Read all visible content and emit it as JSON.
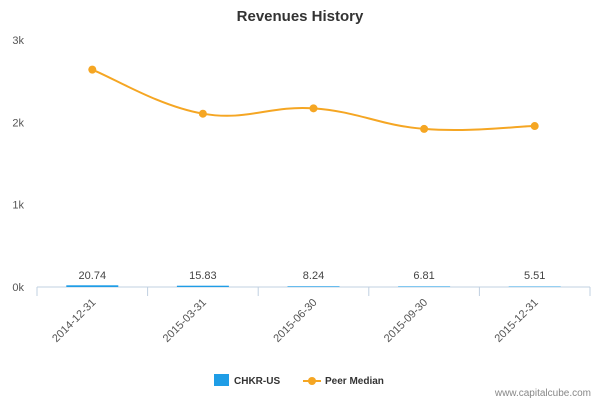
{
  "watermark": "www.capitalcube.com",
  "chart_data": {
    "type": "line",
    "title": "Revenues History",
    "xlabel": "",
    "ylabel": "",
    "categories": [
      "2014-12-31",
      "2015-03-31",
      "2015-06-30",
      "2015-09-30",
      "2015-12-31"
    ],
    "ylim": [
      0,
      3000
    ],
    "yticks": [
      {
        "value": 0,
        "label": "0k"
      },
      {
        "value": 1000,
        "label": "1k"
      },
      {
        "value": 2000,
        "label": "2k"
      },
      {
        "value": 3000,
        "label": "3k"
      }
    ],
    "grid": false,
    "legend_position": "bottom",
    "series": [
      {
        "name": "CHKR-US",
        "kind": "bar",
        "color": "#1f9de6",
        "values": [
          20.74,
          15.83,
          8.24,
          6.81,
          5.51
        ],
        "data_labels": [
          "20.74",
          "15.83",
          "8.24",
          "6.81",
          "5.51"
        ]
      },
      {
        "name": "Peer Median",
        "kind": "line",
        "color": "#f5a623",
        "values": [
          2640,
          2105,
          2170,
          1920,
          1955
        ]
      }
    ]
  }
}
